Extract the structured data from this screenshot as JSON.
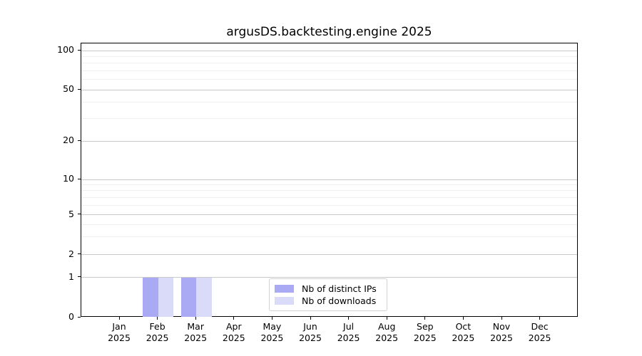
{
  "window": {
    "background": "#ffffff"
  },
  "chart_data": {
    "type": "bar",
    "title": "argusDS.backtesting.engine 2025",
    "categories": [
      "Jan",
      "Feb",
      "Mar",
      "Apr",
      "May",
      "Jun",
      "Jul",
      "Aug",
      "Sep",
      "Oct",
      "Nov",
      "Dec"
    ],
    "category_year": "2025",
    "series": [
      {
        "name": "Nb of distinct IPs",
        "color": "#a9a9f4",
        "values": [
          0,
          1,
          1,
          0,
          0,
          0,
          0,
          0,
          0,
          0,
          0,
          0
        ]
      },
      {
        "name": "Nb of downloads",
        "color": "#dadaf9",
        "values": [
          0,
          1,
          1,
          0,
          0,
          0,
          0,
          0,
          0,
          0,
          0,
          0
        ]
      }
    ],
    "xlabel": "",
    "ylabel": "",
    "yticks": [
      0,
      1,
      2,
      5,
      10,
      20,
      50,
      100
    ],
    "minor_yticks": [
      3,
      4,
      6,
      7,
      8,
      9,
      30,
      40,
      60,
      70,
      80,
      90
    ],
    "ylim": [
      0,
      113
    ],
    "y_scale": "log-like with zero baseline",
    "grid": "horizontal major and minor gridlines",
    "legend_position": "inside bottom-center",
    "colors": {
      "axis": "#000000",
      "grid_major": "#c9c9c9",
      "grid_minor": "#efefef",
      "legend_border": "#d2d2d2"
    }
  }
}
